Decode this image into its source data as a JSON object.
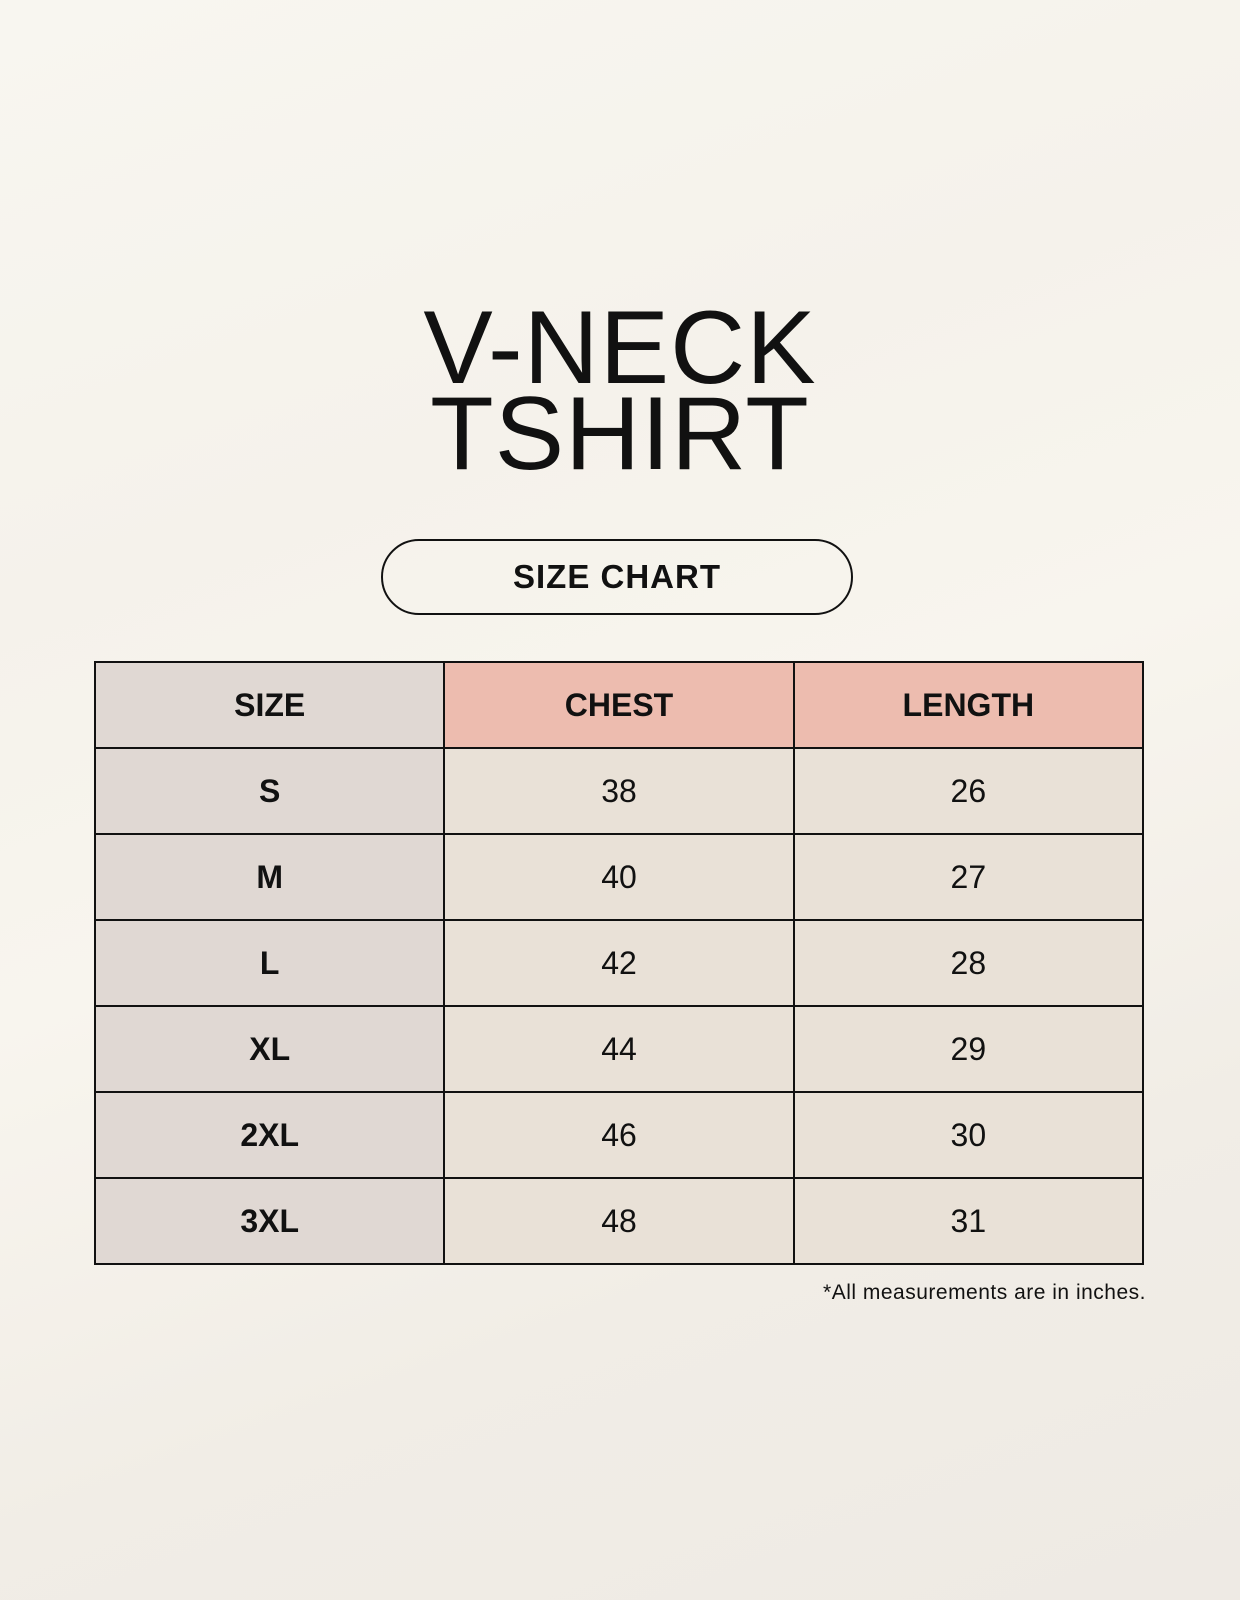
{
  "title": {
    "line1": "V-NECK",
    "line2": "TSHIRT"
  },
  "badge": "SIZE CHART",
  "table": {
    "headers": [
      "SIZE",
      "CHEST",
      "LENGTH"
    ],
    "rows": [
      [
        "S",
        "38",
        "26"
      ],
      [
        "M",
        "40",
        "27"
      ],
      [
        "L",
        "42",
        "28"
      ],
      [
        "XL",
        "44",
        "29"
      ],
      [
        "2XL",
        "46",
        "30"
      ],
      [
        "3XL",
        "48",
        "31"
      ]
    ]
  },
  "footnote": "*All measurements are in inches.",
  "colors": {
    "size_column": "#e0d8d3",
    "header_accent": "#edbcaf",
    "cell": "#e9e1d7"
  }
}
